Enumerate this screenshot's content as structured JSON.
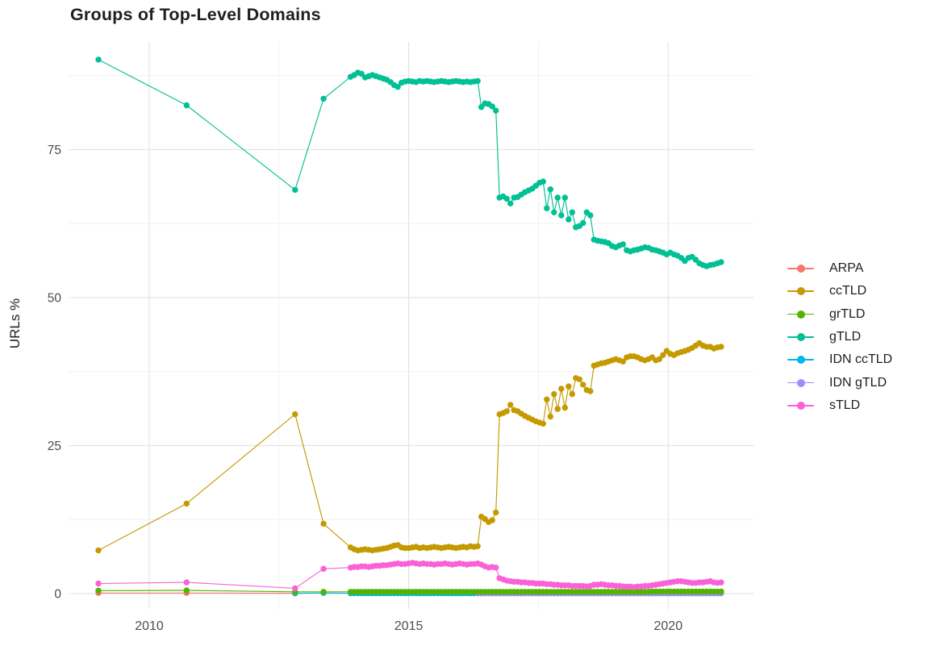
{
  "title": "Groups of Top-Level Domains",
  "axes": {
    "y_title": "URLs %",
    "x_tick_labels": [
      "2010",
      "2015",
      "2020"
    ],
    "y_tick_labels": [
      "0",
      "25",
      "50",
      "75"
    ]
  },
  "legend": {
    "position": "right",
    "entries": [
      {
        "label": "ARPA",
        "color": "#F8766D"
      },
      {
        "label": "ccTLD",
        "color": "#C49A00"
      },
      {
        "label": "grTLD",
        "color": "#53B400"
      },
      {
        "label": "gTLD",
        "color": "#00C094"
      },
      {
        "label": "IDN ccTLD",
        "color": "#00B6EB"
      },
      {
        "label": "IDN gTLD",
        "color": "#A58AFF"
      },
      {
        "label": "sTLD",
        "color": "#FB61D7"
      }
    ]
  },
  "chart_data": {
    "type": "line",
    "title": "Groups of Top-Level Domains",
    "xlabel": "",
    "ylabel": "URLs %",
    "grid": true,
    "legend_position": "right",
    "xlim": [
      2008.45,
      2021.65
    ],
    "ylim": [
      -2.6,
      93.2
    ],
    "x_major_ticks": [
      2010,
      2015,
      2020
    ],
    "x_minor_ticks": [
      2012.5,
      2017.5
    ],
    "y_major_ticks": [
      0,
      25,
      50,
      75
    ],
    "y_minor_ticks": [
      12.5,
      37.5,
      62.5,
      87.5
    ],
    "grid_major_color": "#e4e4e4",
    "grid_minor_color": "#f0f0f0",
    "x_dense": [
      2013.88,
      2013.95,
      2014.02,
      2014.09,
      2014.16,
      2014.23,
      2014.3,
      2014.37,
      2014.44,
      2014.51,
      2014.58,
      2014.65,
      2014.72,
      2014.79,
      2014.86,
      2014.93,
      2015.0,
      2015.07,
      2015.14,
      2015.21,
      2015.28,
      2015.35,
      2015.42,
      2015.49,
      2015.56,
      2015.63,
      2015.7,
      2015.77,
      2015.84,
      2015.91,
      2015.98,
      2016.05,
      2016.12,
      2016.19,
      2016.26,
      2016.33,
      2016.4,
      2016.47,
      2016.54,
      2016.61,
      2016.68,
      2016.75,
      2016.82,
      2016.89,
      2016.96,
      2017.03,
      2017.1,
      2017.17,
      2017.24,
      2017.31,
      2017.38,
      2017.45,
      2017.52,
      2017.59,
      2017.66,
      2017.73,
      2017.8,
      2017.87,
      2017.94,
      2018.01,
      2018.08,
      2018.15,
      2018.22,
      2018.29,
      2018.36,
      2018.43,
      2018.5,
      2018.57,
      2018.64,
      2018.71,
      2018.78,
      2018.85,
      2018.92,
      2018.99,
      2019.06,
      2019.13,
      2019.2,
      2019.27,
      2019.34,
      2019.41,
      2019.48,
      2019.55,
      2019.62,
      2019.69,
      2019.76,
      2019.83,
      2019.9,
      2019.97,
      2020.04,
      2020.11,
      2020.18,
      2020.25,
      2020.32,
      2020.39,
      2020.46,
      2020.53,
      2020.6,
      2020.67,
      2020.74,
      2020.81,
      2020.88,
      2020.95,
      2021.02
    ],
    "draw_order": [
      "ARPA",
      "ccTLD",
      "IDN ccTLD",
      "IDN gTLD",
      "grTLD",
      "gTLD",
      "sTLD"
    ],
    "series": [
      {
        "name": "ARPA",
        "color": "#F8766D",
        "sparse": [
          [
            2009.02,
            0.1
          ],
          [
            2010.72,
            0.1
          ],
          [
            2012.81,
            0.05
          ]
        ],
        "dense_offset": 0,
        "dense": []
      },
      {
        "name": "ccTLD",
        "color": "#C49A00",
        "sparse": [
          [
            2009.02,
            7.3
          ],
          [
            2010.72,
            15.2
          ],
          [
            2012.81,
            30.3
          ],
          [
            2013.36,
            11.8
          ]
        ],
        "dense_offset": 0,
        "dense": [
          7.8,
          7.5,
          7.3,
          7.4,
          7.5,
          7.4,
          7.3,
          7.4,
          7.5,
          7.6,
          7.7,
          7.9,
          8.1,
          8.2,
          7.8,
          7.7,
          7.7,
          7.8,
          7.9,
          7.7,
          7.8,
          7.7,
          7.8,
          7.9,
          7.8,
          7.7,
          7.8,
          7.9,
          7.8,
          7.7,
          7.8,
          7.9,
          7.8,
          8.0,
          7.9,
          8.0,
          13.0,
          12.6,
          12.1,
          12.4,
          13.7,
          30.3,
          30.5,
          30.8,
          31.9,
          31.0,
          30.8,
          30.4,
          30.0,
          29.7,
          29.4,
          29.1,
          28.9,
          28.7,
          32.8,
          29.9,
          33.7,
          31.2,
          34.6,
          31.4,
          35.0,
          33.7,
          36.4,
          36.2,
          35.3,
          34.4,
          34.2,
          38.5,
          38.7,
          38.9,
          39.0,
          39.2,
          39.4,
          39.6,
          39.4,
          39.2,
          39.9,
          40.1,
          40.1,
          39.9,
          39.6,
          39.4,
          39.6,
          39.9,
          39.4,
          39.6,
          40.3,
          41.0,
          40.5,
          40.3,
          40.6,
          40.8,
          41.0,
          41.2,
          41.5,
          41.9,
          42.3,
          41.9,
          41.7,
          41.7,
          41.4,
          41.6,
          41.7
        ]
      },
      {
        "name": "grTLD",
        "color": "#53B400",
        "sparse": [
          [
            2009.02,
            0.5
          ],
          [
            2010.72,
            0.55
          ],
          [
            2012.81,
            0.3
          ],
          [
            2013.36,
            0.3
          ]
        ],
        "dense_offset": 0,
        "dense": [
          0.3,
          0.3,
          0.3,
          0.3,
          0.3,
          0.3,
          0.3,
          0.3,
          0.3,
          0.3,
          0.3,
          0.3,
          0.3,
          0.3,
          0.3,
          0.3,
          0.3,
          0.3,
          0.3,
          0.3,
          0.3,
          0.3,
          0.3,
          0.3,
          0.3,
          0.3,
          0.3,
          0.3,
          0.3,
          0.3,
          0.3,
          0.3,
          0.3,
          0.3,
          0.3,
          0.3,
          0.3,
          0.3,
          0.3,
          0.3,
          0.3,
          0.3,
          0.3,
          0.3,
          0.3,
          0.3,
          0.3,
          0.3,
          0.3,
          0.3,
          0.3,
          0.3,
          0.3,
          0.3,
          0.3,
          0.3,
          0.3,
          0.3,
          0.3,
          0.3,
          0.3,
          0.3,
          0.3,
          0.3,
          0.3,
          0.3,
          0.3,
          0.3,
          0.3,
          0.3,
          0.3,
          0.3,
          0.3,
          0.3,
          0.3,
          0.3,
          0.3,
          0.3,
          0.3,
          0.3,
          0.3,
          0.3,
          0.3,
          0.35,
          0.35,
          0.35,
          0.35,
          0.35,
          0.35,
          0.35,
          0.35,
          0.35,
          0.35,
          0.35,
          0.35,
          0.35,
          0.35,
          0.35,
          0.35,
          0.35,
          0.35,
          0.35,
          0.35
        ]
      },
      {
        "name": "gTLD",
        "color": "#00C094",
        "sparse": [
          [
            2009.02,
            90.2
          ],
          [
            2010.72,
            82.5
          ],
          [
            2012.81,
            68.2
          ],
          [
            2013.36,
            83.6
          ]
        ],
        "dense_offset": 0,
        "dense": [
          87.3,
          87.6,
          88.0,
          87.8,
          87.2,
          87.4,
          87.6,
          87.4,
          87.2,
          87.0,
          86.8,
          86.4,
          85.9,
          85.6,
          86.3,
          86.5,
          86.6,
          86.5,
          86.4,
          86.6,
          86.5,
          86.6,
          86.5,
          86.4,
          86.5,
          86.6,
          86.5,
          86.4,
          86.5,
          86.6,
          86.5,
          86.4,
          86.5,
          86.4,
          86.5,
          86.6,
          82.2,
          82.8,
          82.7,
          82.3,
          81.6,
          66.9,
          67.1,
          66.7,
          65.9,
          66.9,
          67.0,
          67.4,
          67.8,
          68.1,
          68.4,
          68.9,
          69.4,
          69.6,
          65.1,
          68.3,
          64.4,
          66.9,
          63.9,
          66.9,
          63.2,
          64.4,
          61.9,
          62.1,
          62.6,
          64.4,
          63.9,
          59.8,
          59.6,
          59.5,
          59.4,
          59.2,
          58.7,
          58.5,
          58.8,
          59.0,
          58.0,
          57.8,
          58.0,
          58.1,
          58.3,
          58.5,
          58.4,
          58.1,
          58.0,
          57.8,
          57.6,
          57.3,
          57.6,
          57.3,
          57.1,
          56.7,
          56.2,
          56.7,
          56.9,
          56.4,
          55.8,
          55.5,
          55.3,
          55.5,
          55.6,
          55.8,
          56.0
        ]
      },
      {
        "name": "IDN ccTLD",
        "color": "#00B6EB",
        "sparse": [
          [
            2012.81,
            0.05
          ],
          [
            2013.36,
            0.1
          ]
        ],
        "dense_offset": 0,
        "dense": [
          0.05,
          0.05,
          0.05,
          0.05,
          0.05,
          0.05,
          0.05,
          0.05,
          0.05,
          0.05,
          0.05,
          0.05,
          0.05,
          0.05,
          0.05,
          0.05,
          0.05,
          0.05,
          0.05,
          0.05,
          0.05,
          0.05,
          0.05,
          0.05,
          0.05,
          0.05,
          0.05,
          0.05,
          0.05,
          0.05,
          0.05,
          0.05,
          0.05,
          0.05,
          0.05,
          0.05,
          0.05,
          0.05,
          0.05,
          0.05,
          0.05,
          0.05,
          0.05,
          0.05,
          0.05,
          0.05,
          0.05,
          0.05,
          0.05,
          0.05,
          0.05,
          0.05,
          0.05,
          0.05,
          0.05,
          0.05,
          0.05,
          0.05,
          0.05,
          0.05,
          0.05,
          0.05,
          0.05,
          0.05,
          0.05,
          0.05,
          0.05,
          0.05,
          0.05,
          0.05,
          0.05,
          0.05,
          0.05,
          0.05,
          0.05,
          0.05,
          0.05,
          0.05,
          0.05,
          0.05,
          0.05,
          0.05,
          0.05,
          0.05,
          0.05,
          0.05,
          0.05,
          0.05,
          0.05,
          0.05,
          0.05,
          0.05,
          0.05,
          0.05,
          0.05,
          0.05,
          0.05,
          0.05,
          0.05,
          0.05,
          0.05,
          0.05,
          0.05
        ]
      },
      {
        "name": "IDN gTLD",
        "color": "#A58AFF",
        "sparse": [],
        "dense_offset": 35,
        "dense": [
          0.05,
          0.05,
          0.05,
          0.05,
          0.05,
          0.05,
          0.05,
          0.05,
          0.05,
          0.05,
          0.05,
          0.05,
          0.05,
          0.05,
          0.05,
          0.05,
          0.05,
          0.05,
          0.05,
          0.05,
          0.05,
          0.05,
          0.05,
          0.05,
          0.05,
          0.05,
          0.05,
          0.05,
          0.05,
          0.05,
          0.05,
          0.05,
          0.05,
          0.05,
          0.05,
          0.05,
          0.05,
          0.05,
          0.05,
          0.05,
          0.05,
          0.05,
          0.05,
          0.05,
          0.05,
          0.05,
          0.05,
          0.05,
          0.05,
          0.05,
          0.05,
          0.05,
          0.05,
          0.05,
          0.05,
          0.05,
          0.05,
          0.05,
          0.05,
          0.05,
          0.05,
          0.05,
          0.05,
          0.05,
          0.05,
          0.05,
          0.05,
          0.05
        ]
      },
      {
        "name": "sTLD",
        "color": "#FB61D7",
        "sparse": [
          [
            2009.02,
            1.7
          ],
          [
            2010.72,
            1.9
          ],
          [
            2012.81,
            0.9
          ],
          [
            2013.36,
            4.2
          ]
        ],
        "dense_offset": 0,
        "dense": [
          4.4,
          4.5,
          4.5,
          4.6,
          4.6,
          4.5,
          4.6,
          4.7,
          4.7,
          4.8,
          4.8,
          4.9,
          5.0,
          5.1,
          5.0,
          5.0,
          5.1,
          5.2,
          5.1,
          5.0,
          5.1,
          5.0,
          5.0,
          4.9,
          5.0,
          5.0,
          5.1,
          5.0,
          4.9,
          5.0,
          5.1,
          5.0,
          4.9,
          5.0,
          5.0,
          5.1,
          4.9,
          4.6,
          4.4,
          4.5,
          4.4,
          2.6,
          2.4,
          2.2,
          2.1,
          2.0,
          2.0,
          1.9,
          1.9,
          1.8,
          1.8,
          1.7,
          1.7,
          1.7,
          1.6,
          1.6,
          1.5,
          1.5,
          1.4,
          1.4,
          1.4,
          1.3,
          1.3,
          1.3,
          1.3,
          1.2,
          1.3,
          1.5,
          1.5,
          1.6,
          1.5,
          1.4,
          1.4,
          1.3,
          1.3,
          1.2,
          1.2,
          1.2,
          1.1,
          1.2,
          1.2,
          1.3,
          1.3,
          1.4,
          1.5,
          1.6,
          1.7,
          1.8,
          1.9,
          2.0,
          2.1,
          2.1,
          2.0,
          1.9,
          1.8,
          1.8,
          1.9,
          1.9,
          2.0,
          2.1,
          1.9,
          1.8,
          1.9
        ]
      }
    ]
  }
}
